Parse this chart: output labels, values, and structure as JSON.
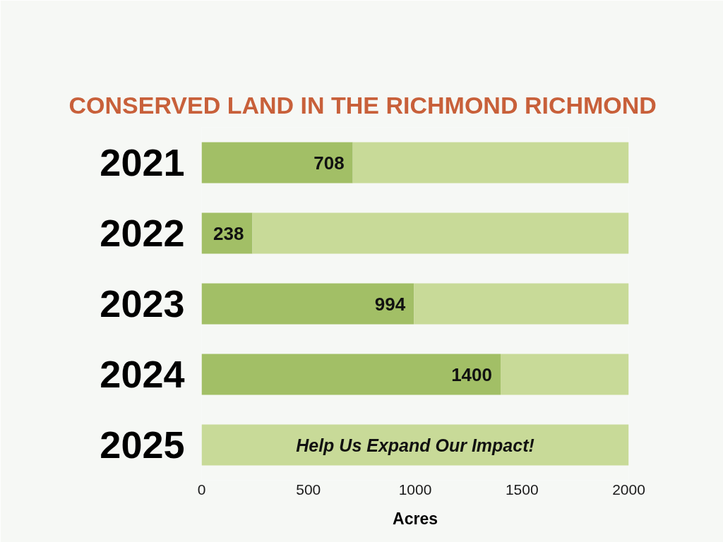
{
  "chart_data": {
    "type": "bar",
    "orientation": "horizontal",
    "stacked": true,
    "title": "CONSERVED LAND IN THE RICHMOND RICHMOND",
    "xlabel": "Acres",
    "categories": [
      "2021",
      "2022",
      "2023",
      "2024",
      "2025"
    ],
    "series": [
      {
        "color": "#a2bf66",
        "values": [
          708,
          238,
          994,
          1400,
          null
        ],
        "value_labels": [
          "708",
          "238",
          "994",
          "1400",
          null
        ]
      },
      {
        "color": "#c8da98",
        "values": [
          1292,
          1762,
          1006,
          600,
          2000
        ]
      }
    ],
    "xlim": [
      0,
      2000
    ],
    "xticks": [
      0,
      500,
      1000,
      1500,
      2000
    ],
    "grid": false,
    "annotations": [
      "Help Us Expand Our Impact!"
    ]
  }
}
